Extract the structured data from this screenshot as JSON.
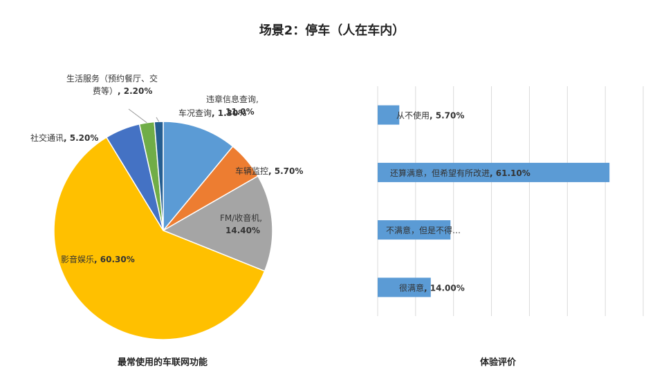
{
  "page_title": "场景2：停车（人在车内）",
  "chart_data": [
    {
      "type": "pie",
      "title": "最常使用的车联网功能",
      "slices": [
        {
          "label": "违章信息查询",
          "value": 11.0,
          "value_text": "11.0%",
          "color": "#5B9BD5"
        },
        {
          "label": "车辆监控",
          "value": 5.7,
          "value_text": "5.70%",
          "color": "#ED7D31"
        },
        {
          "label": "FM/收音机",
          "value": 14.4,
          "value_text": "14.40%",
          "color": "#A5A5A5"
        },
        {
          "label": "影音娱乐",
          "value": 60.3,
          "value_text": "60.30%",
          "color": "#FFC000"
        },
        {
          "label": "社交通讯",
          "value": 5.2,
          "value_text": "5.20%",
          "color": "#4472C4"
        },
        {
          "label": "生活服务（预约餐厅、交费等）",
          "value": 2.2,
          "value_text": "2.20%",
          "color": "#70AD47"
        },
        {
          "label": "车况查询",
          "value": 1.3,
          "value_text": "1.30%",
          "color": "#255E91"
        }
      ]
    },
    {
      "type": "bar",
      "orientation": "horizontal",
      "title": "体验评价",
      "color": "#5B9BD5",
      "grid": true,
      "xlim": [
        0,
        70
      ],
      "categories": [
        "从不使用",
        "还算满意，但希望有所改进",
        "不满意，但是不得…",
        "很满意"
      ],
      "values": [
        5.7,
        61.1,
        19.2,
        14.0
      ],
      "value_texts": [
        "5.70%",
        "61.10%",
        "",
        "14.00%"
      ]
    }
  ]
}
